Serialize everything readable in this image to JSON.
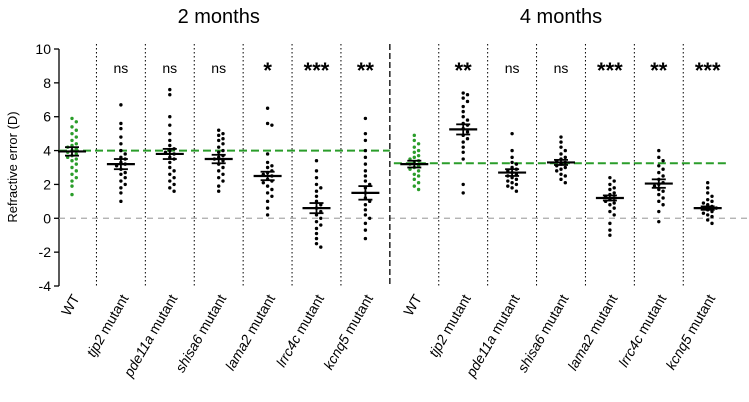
{
  "chart_data": {
    "type": "scatter",
    "title": "",
    "ylabel": "Refractive error (D)",
    "xlabel": "",
    "ylim": [
      -4,
      10
    ],
    "yticks": [
      -4,
      -2,
      0,
      2,
      4,
      6,
      8,
      10
    ],
    "reference_lines": [
      {
        "panel": 0,
        "y": 4.0,
        "color": "#2a9d2a",
        "style": "dashed"
      },
      {
        "panel": 1,
        "y": 3.25,
        "color": "#2a9d2a",
        "style": "dashed"
      },
      {
        "y": 0,
        "color": "#aaaaaa",
        "style": "dashed"
      }
    ],
    "panels": [
      {
        "title": "2 months",
        "groups": [
          {
            "label": "WT",
            "italic": false,
            "color": "#2a9d2a",
            "mean": 3.95,
            "sem": 0.25,
            "significance": "",
            "values": [
              5.9,
              5.7,
              5.4,
              5.2,
              5.0,
              4.8,
              4.6,
              4.4,
              4.3,
              4.2,
              4.1,
              4.0,
              3.9,
              3.8,
              3.7,
              3.6,
              3.5,
              3.4,
              3.2,
              3.0,
              2.8,
              2.6,
              2.4,
              2.2,
              1.9,
              1.4
            ]
          },
          {
            "label": "tjp2 mutant",
            "italic": true,
            "color": "#000000",
            "mean": 3.2,
            "sem": 0.3,
            "significance": "ns",
            "values": [
              6.7,
              5.6,
              5.3,
              4.8,
              4.4,
              4.0,
              3.8,
              3.6,
              3.5,
              3.3,
              3.2,
              3.1,
              2.9,
              2.7,
              2.6,
              2.4,
              2.2,
              2.0,
              1.8,
              1.5,
              1.0
            ]
          },
          {
            "label": "pde11a mutant",
            "italic": true,
            "color": "#000000",
            "mean": 3.8,
            "sem": 0.3,
            "significance": "ns",
            "values": [
              7.6,
              7.3,
              6.0,
              5.5,
              5.0,
              4.6,
              4.3,
              4.1,
              4.0,
              3.9,
              3.8,
              3.6,
              3.5,
              3.3,
              3.0,
              2.8,
              2.6,
              2.4,
              2.2,
              2.0,
              1.8,
              1.6
            ]
          },
          {
            "label": "shisa6 mutant",
            "italic": true,
            "color": "#000000",
            "mean": 3.5,
            "sem": 0.25,
            "significance": "ns",
            "values": [
              5.2,
              5.0,
              4.9,
              4.7,
              4.6,
              4.4,
              4.2,
              4.0,
              3.9,
              3.7,
              3.6,
              3.5,
              3.4,
              3.2,
              3.0,
              2.8,
              2.6,
              2.4,
              2.2,
              1.9,
              1.6
            ]
          },
          {
            "label": "lama2 mutant",
            "italic": true,
            "color": "#000000",
            "mean": 2.5,
            "sem": 0.25,
            "significance": "*",
            "values": [
              6.5,
              5.6,
              5.5,
              3.8,
              3.3,
              3.1,
              3.0,
              2.8,
              2.7,
              2.6,
              2.5,
              2.3,
              2.2,
              2.1,
              1.9,
              1.7,
              1.5,
              1.3,
              1.0,
              0.6,
              0.2
            ]
          },
          {
            "label": "lrrc4c mutant",
            "italic": true,
            "color": "#000000",
            "mean": 0.6,
            "sem": 0.3,
            "significance": "***",
            "values": [
              3.4,
              2.8,
              2.4,
              2.0,
              1.8,
              1.6,
              1.3,
              1.0,
              0.8,
              0.6,
              0.4,
              0.2,
              0.0,
              -0.2,
              -0.4,
              -0.6,
              -0.9,
              -1.2,
              -1.5,
              -1.7
            ]
          },
          {
            "label": "kcnq5 mutant",
            "italic": true,
            "color": "#000000",
            "mean": 1.5,
            "sem": 0.4,
            "significance": "**",
            "values": [
              5.9,
              5.0,
              4.6,
              4.0,
              3.6,
              3.2,
              2.8,
              2.5,
              2.2,
              2.0,
              1.8,
              1.5,
              1.2,
              1.0,
              0.8,
              0.5,
              0.2,
              0.0,
              -0.3,
              -0.7,
              -1.2
            ]
          }
        ]
      },
      {
        "title": "4 months",
        "groups": [
          {
            "label": "WT",
            "italic": false,
            "color": "#2a9d2a",
            "mean": 3.2,
            "sem": 0.2,
            "significance": "",
            "values": [
              4.9,
              4.6,
              4.4,
              4.2,
              4.0,
              3.9,
              3.7,
              3.6,
              3.5,
              3.4,
              3.3,
              3.2,
              3.1,
              3.0,
              2.9,
              2.8,
              2.6,
              2.5,
              2.3,
              2.1,
              1.9,
              1.7
            ]
          },
          {
            "label": "tjp2 mutant",
            "italic": true,
            "color": "#000000",
            "mean": 5.25,
            "sem": 0.3,
            "significance": "**",
            "values": [
              7.4,
              7.3,
              7.1,
              6.9,
              6.6,
              6.3,
              6.0,
              5.8,
              5.6,
              5.5,
              5.3,
              5.1,
              4.9,
              4.7,
              4.5,
              4.2,
              3.9,
              3.5,
              2.0,
              1.5
            ]
          },
          {
            "label": "pde11a mutant",
            "italic": true,
            "color": "#000000",
            "mean": 2.7,
            "sem": 0.2,
            "significance": "ns",
            "values": [
              5.0,
              4.0,
              3.6,
              3.3,
              3.2,
              3.0,
              2.9,
              2.8,
              2.7,
              2.6,
              2.5,
              2.4,
              2.3,
              2.2,
              2.1,
              2.0,
              1.9,
              1.8,
              1.6
            ]
          },
          {
            "label": "shisa6 mutant",
            "italic": true,
            "color": "#000000",
            "mean": 3.3,
            "sem": 0.15,
            "significance": "ns",
            "values": [
              4.8,
              4.5,
              4.2,
              4.0,
              3.8,
              3.6,
              3.5,
              3.4,
              3.3,
              3.2,
              3.1,
              3.0,
              2.9,
              2.8,
              2.6,
              2.5,
              2.3,
              2.1
            ]
          },
          {
            "label": "lama2 mutant",
            "italic": true,
            "color": "#000000",
            "mean": 1.2,
            "sem": 0.15,
            "significance": "***",
            "values": [
              2.4,
              2.2,
              2.0,
              1.8,
              1.7,
              1.5,
              1.4,
              1.3,
              1.2,
              1.1,
              1.0,
              0.9,
              0.8,
              0.6,
              0.4,
              0.2,
              -0.3,
              -0.7,
              -1.0
            ]
          },
          {
            "label": "lrrc4c mutant",
            "italic": true,
            "color": "#000000",
            "mean": 2.05,
            "sem": 0.25,
            "significance": "**",
            "values": [
              4.0,
              3.6,
              3.4,
              3.1,
              2.9,
              2.7,
              2.5,
              2.3,
              2.1,
              2.0,
              1.9,
              1.7,
              1.6,
              1.4,
              1.2,
              1.0,
              0.8,
              0.4,
              -0.2
            ]
          },
          {
            "label": "kcnq5 mutant",
            "italic": true,
            "color": "#000000",
            "mean": 0.6,
            "sem": 0.1,
            "significance": "***",
            "values": [
              2.1,
              1.8,
              1.5,
              1.3,
              1.1,
              1.0,
              0.9,
              0.8,
              0.7,
              0.6,
              0.6,
              0.5,
              0.4,
              0.3,
              0.2,
              0.1,
              -0.1,
              -0.3
            ]
          }
        ]
      }
    ]
  }
}
